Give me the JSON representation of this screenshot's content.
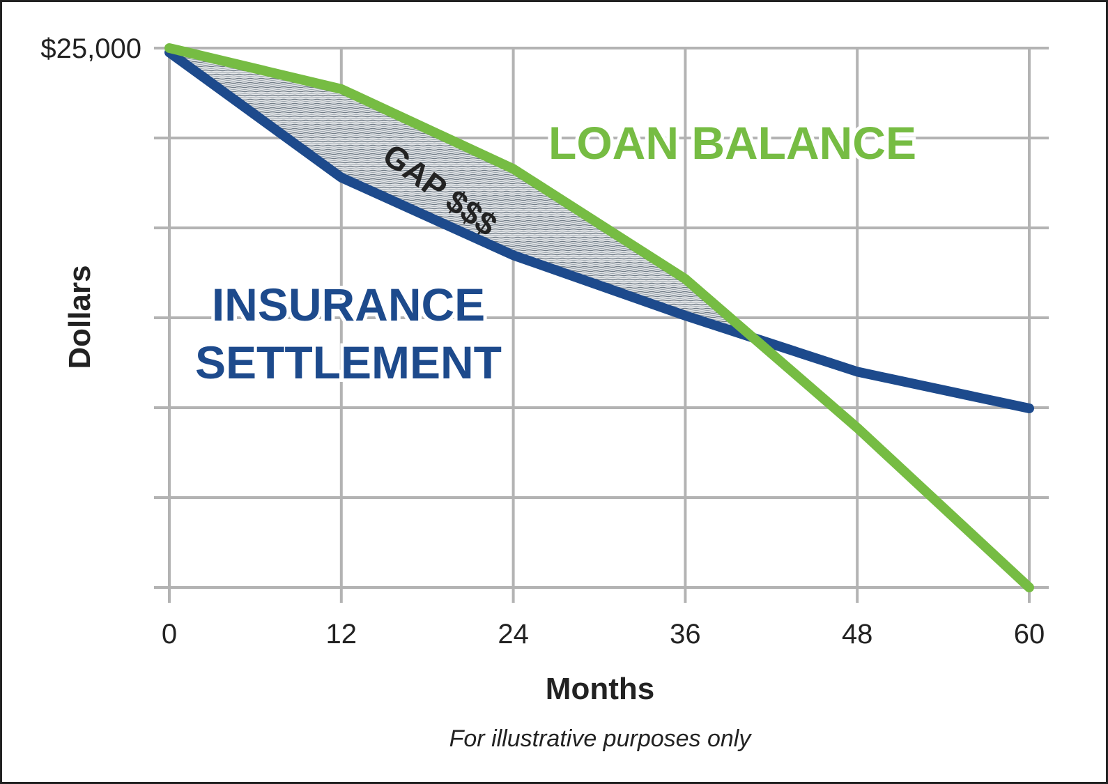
{
  "chart_data": {
    "type": "line",
    "title": "",
    "xlabel": "Months",
    "ylabel": "Dollars",
    "x": [
      0,
      12,
      24,
      36,
      48,
      60
    ],
    "xlim": [
      0,
      60
    ],
    "ylim": [
      0,
      25000
    ],
    "y_tick_values": [
      0,
      4166.67,
      8333.33,
      12500,
      16666.67,
      20833.33,
      25000
    ],
    "y_tick_labels": [
      "",
      "",
      "",
      "",
      "",
      "",
      "$25,000"
    ],
    "grid": true,
    "series": [
      {
        "name": "LOAN BALANCE",
        "color": "#76bc43",
        "values": [
          25000,
          23100,
          19400,
          14300,
          7400,
          0
        ]
      },
      {
        "name": "INSURANCE SETTLEMENT",
        "color": "#1d4a8c",
        "values": [
          24800,
          19000,
          15400,
          12600,
          10000,
          8300
        ]
      }
    ],
    "shaded_region": {
      "label": "GAP $$$",
      "between": [
        "LOAN BALANCE",
        "INSURANCE SETTLEMENT"
      ],
      "x_range": [
        0,
        40
      ]
    },
    "note": "For illustrative purposes only"
  }
}
